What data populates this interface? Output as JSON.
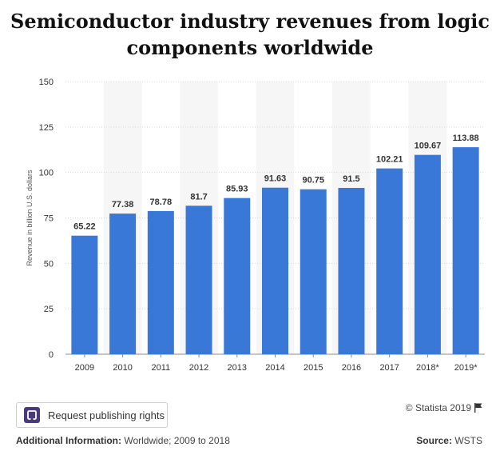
{
  "title_line1": "Semiconductor industry revenues from logic",
  "title_line2": "components worldwide",
  "publish_button": "Request publishing rights",
  "copyright": "© Statista 2019",
  "additional_info_label": "Additional Information:",
  "additional_info_value": "Worldwide; 2009 to 2018",
  "source_label": "Source:",
  "source_value": "WSTS",
  "colors": {
    "bar": "#3a78d8",
    "band": "#f6f6f6",
    "grid": "#d8d8d8",
    "axis": "#888888"
  },
  "chart_data": {
    "type": "bar",
    "categories": [
      "2009",
      "2010",
      "2011",
      "2012",
      "2013",
      "2014",
      "2015",
      "2016",
      "2017",
      "2018*",
      "2019*"
    ],
    "values": [
      65.22,
      77.38,
      78.78,
      81.7,
      85.93,
      91.63,
      90.75,
      91.5,
      102.21,
      109.67,
      113.88
    ],
    "data_labels": [
      "65.22",
      "77.38",
      "78.78",
      "81.7",
      "85.93",
      "91.63",
      "90.75",
      "91.5",
      "102.21",
      "109.67",
      "113.88"
    ],
    "ylabel": "Revenue in billion U.S. dollars",
    "ylim": [
      0,
      150
    ],
    "yticks": [
      0,
      25,
      50,
      75,
      100,
      125,
      150
    ],
    "grid": true
  }
}
